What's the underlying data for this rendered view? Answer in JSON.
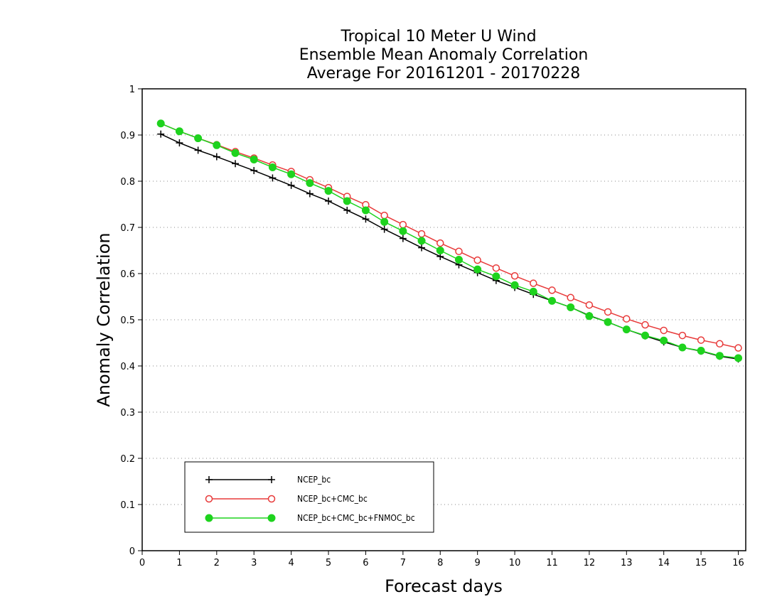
{
  "chart_data": {
    "type": "line",
    "title_lines": [
      "Tropical 10 Meter U Wind",
      "Ensemble Mean Anomaly Correlation",
      "Average For 20161201 - 20170228"
    ],
    "xlabel": "Forecast days",
    "ylabel": "Anomaly Correlation",
    "xlim": [
      0,
      16.2
    ],
    "ylim": [
      0,
      1
    ],
    "xticks": [
      0,
      1,
      2,
      3,
      4,
      5,
      6,
      7,
      8,
      9,
      10,
      11,
      12,
      13,
      14,
      15,
      16
    ],
    "yticks": [
      0,
      0.1,
      0.2,
      0.3,
      0.4,
      0.5,
      0.6,
      0.7,
      0.8,
      0.9,
      1
    ],
    "grid": "horizontal dotted",
    "legend_position": "bottom-left",
    "x": [
      0.5,
      1.0,
      1.5,
      2.0,
      2.5,
      3.0,
      3.5,
      4.0,
      4.5,
      5.0,
      5.5,
      6.0,
      6.5,
      7.0,
      7.5,
      8.0,
      8.5,
      9.0,
      9.5,
      10.0,
      10.5,
      11.0,
      11.5,
      12.0,
      12.5,
      13.0,
      13.5,
      14.0,
      14.5,
      15.0,
      15.5,
      16.0
    ],
    "series": [
      {
        "name": "NCEP_bc",
        "color": "#000000",
        "marker": "plus",
        "values": [
          0.902,
          0.883,
          0.867,
          0.853,
          0.838,
          0.823,
          0.807,
          0.791,
          0.773,
          0.757,
          0.737,
          0.718,
          0.696,
          0.676,
          0.656,
          0.637,
          0.619,
          0.602,
          0.585,
          0.57,
          0.555,
          0.541,
          0.527,
          0.509,
          0.495,
          0.479,
          0.465,
          0.452,
          0.44,
          0.432,
          0.421,
          0.415
        ]
      },
      {
        "name": "NCEP_bc+CMC_bc",
        "color": "#e83a3a",
        "marker": "open-circle",
        "values": [
          0.925,
          0.908,
          0.893,
          0.879,
          0.864,
          0.85,
          0.835,
          0.821,
          0.803,
          0.786,
          0.767,
          0.749,
          0.726,
          0.706,
          0.686,
          0.666,
          0.648,
          0.629,
          0.612,
          0.595,
          0.579,
          0.564,
          0.548,
          0.532,
          0.517,
          0.502,
          0.489,
          0.477,
          0.466,
          0.456,
          0.448,
          0.439
        ]
      },
      {
        "name": "NCEP_bc+CMC_bc+FNMOC_bc",
        "color": "#1ed31e",
        "marker": "filled-circle",
        "values": [
          0.925,
          0.908,
          0.893,
          0.878,
          0.861,
          0.847,
          0.83,
          0.815,
          0.796,
          0.779,
          0.757,
          0.737,
          0.712,
          0.692,
          0.671,
          0.65,
          0.63,
          0.609,
          0.594,
          0.575,
          0.561,
          0.541,
          0.527,
          0.508,
          0.495,
          0.479,
          0.466,
          0.455,
          0.44,
          0.433,
          0.422,
          0.417
        ]
      }
    ]
  }
}
